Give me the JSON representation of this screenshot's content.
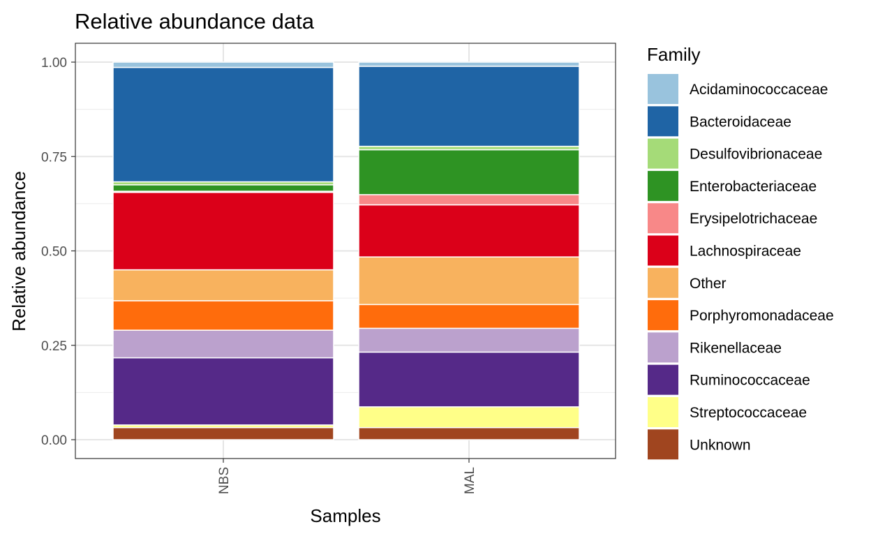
{
  "chart_data": {
    "type": "bar",
    "stacked": true,
    "title": "Relative abundance data",
    "xlabel": "Samples",
    "ylabel": "Relative abundance",
    "ylim": [
      0,
      1
    ],
    "yticks": [
      "0.00",
      "0.25",
      "0.50",
      "0.75",
      "1.00"
    ],
    "categories": [
      "NBS",
      "MAL"
    ],
    "grid": true,
    "legend_position": "right",
    "legend_title": "Family",
    "series": [
      {
        "name": "Unknown",
        "color": "#A0451F",
        "values": [
          0.032,
          0.032
        ]
      },
      {
        "name": "Streptococcaceae",
        "color": "#FFFF88",
        "values": [
          0.007,
          0.055
        ]
      },
      {
        "name": "Ruminococcaceae",
        "color": "#552988",
        "values": [
          0.178,
          0.145
        ]
      },
      {
        "name": "Rikenellaceae",
        "color": "#BBA1CD",
        "values": [
          0.073,
          0.063
        ]
      },
      {
        "name": "Porphyromonadaceae",
        "color": "#FF6C0C",
        "values": [
          0.078,
          0.063
        ]
      },
      {
        "name": "Other",
        "color": "#F8B25E",
        "values": [
          0.082,
          0.126
        ]
      },
      {
        "name": "Lachnospiraceae",
        "color": "#DB0019",
        "values": [
          0.205,
          0.138
        ]
      },
      {
        "name": "Erysipelotrichaceae",
        "color": "#F88888",
        "values": [
          0.003,
          0.027
        ]
      },
      {
        "name": "Enterobacteriaceae",
        "color": "#2E9323",
        "values": [
          0.017,
          0.119
        ]
      },
      {
        "name": "Desulfovibrionaceae",
        "color": "#A5DB78",
        "values": [
          0.008,
          0.009
        ]
      },
      {
        "name": "Bacteroidaceae",
        "color": "#1F64A5",
        "values": [
          0.303,
          0.212
        ]
      },
      {
        "name": "Acidaminococcaceae",
        "color": "#99C3DD",
        "values": [
          0.014,
          0.011
        ]
      }
    ]
  },
  "legend": {
    "title": "Family",
    "items": [
      "Acidaminococcaceae",
      "Bacteroidaceae",
      "Desulfovibrionaceae",
      "Enterobacteriaceae",
      "Erysipelotrichaceae",
      "Lachnospiraceae",
      "Other",
      "Porphyromonadaceae",
      "Rikenellaceae",
      "Ruminococcaceae",
      "Streptococcaceae",
      "Unknown"
    ]
  }
}
